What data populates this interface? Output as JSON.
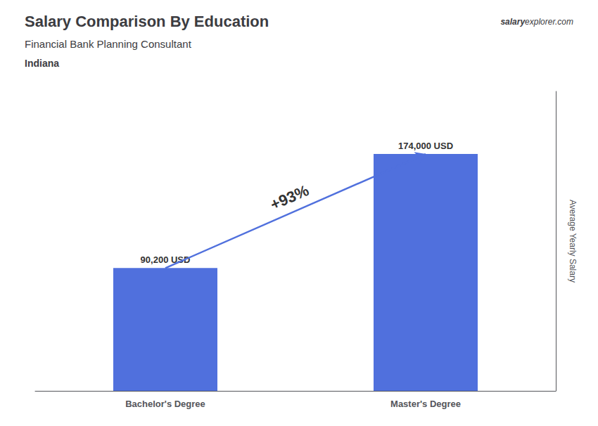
{
  "chart_data": {
    "type": "bar",
    "title": "Salary Comparison By Education",
    "subtitle": "Financial Bank Planning Consultant",
    "location": "Indiana",
    "source": [
      "salary",
      "explorer.com"
    ],
    "annotation": "+93%",
    "ylabel": "Average Yearly Salary",
    "categories": [
      "Bachelor's Degree",
      "Master's Degree"
    ],
    "values": [
      90200,
      174000
    ],
    "value_labels": [
      "90,200 USD",
      "174,000 USD"
    ],
    "data_labels": true,
    "ylim": [
      0,
      220000
    ],
    "tick_labels": "x",
    "grid": false
  }
}
